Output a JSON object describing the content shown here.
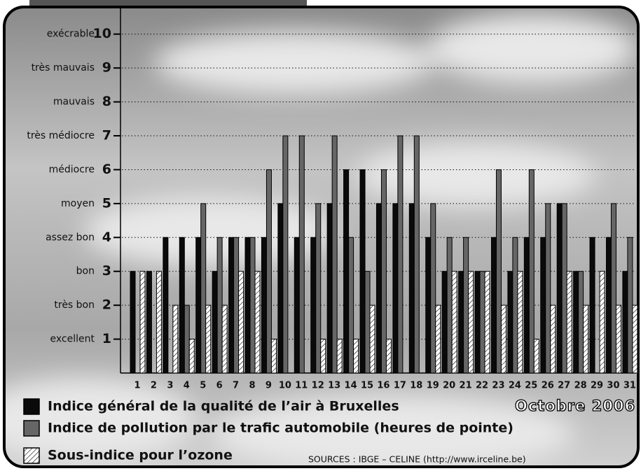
{
  "chart_data": {
    "type": "bar",
    "categories": [
      "1",
      "2",
      "3",
      "4",
      "5",
      "6",
      "7",
      "8",
      "9",
      "10",
      "11",
      "12",
      "13",
      "14",
      "15",
      "16",
      "17",
      "18",
      "19",
      "20",
      "21",
      "22",
      "23",
      "24",
      "25",
      "26",
      "27",
      "28",
      "29",
      "30",
      "31"
    ],
    "series": [
      {
        "name": "Indice général de la qualité de l’air à Bruxelles",
        "color": "#0a0a0a",
        "hatch": false,
        "values": [
          3,
          3,
          4,
          4,
          4,
          3,
          4,
          4,
          4,
          5,
          4,
          4,
          5,
          6,
          6,
          5,
          5,
          5,
          4,
          3,
          3,
          3,
          4,
          3,
          4,
          4,
          5,
          3,
          4,
          4,
          3
        ]
      },
      {
        "name": "Indice de pollution par le trafic automobile (heures de pointe)",
        "color": "#666666",
        "hatch": false,
        "values": [
          null,
          null,
          null,
          2,
          5,
          4,
          4,
          4,
          6,
          7,
          7,
          5,
          7,
          4,
          3,
          6,
          7,
          7,
          5,
          4,
          4,
          3,
          6,
          4,
          6,
          5,
          5,
          3,
          null,
          5,
          4
        ]
      },
      {
        "name": "Sous-indice pour l’ozone",
        "color": "#ffffff",
        "hatch": true,
        "values": [
          3,
          3,
          2,
          1,
          2,
          2,
          3,
          3,
          1,
          null,
          null,
          1,
          1,
          1,
          2,
          1,
          null,
          null,
          2,
          3,
          3,
          3,
          2,
          3,
          1,
          2,
          3,
          2,
          3,
          2,
          2
        ]
      }
    ],
    "ylim": [
      0,
      10.8
    ],
    "yticks": [
      1,
      2,
      3,
      4,
      5,
      6,
      7,
      8,
      9,
      10
    ],
    "ytick_words": [
      "excellent",
      "très bon",
      "bon",
      "assez bon",
      "moyen",
      "médiocre",
      "très médiocre",
      "mauvais",
      "très mauvais",
      "exécrable"
    ],
    "grid": true,
    "annotation": "Octobre 2006",
    "source": "SOURCES : IBGE – CELINE (http://www.irceline.be)"
  }
}
